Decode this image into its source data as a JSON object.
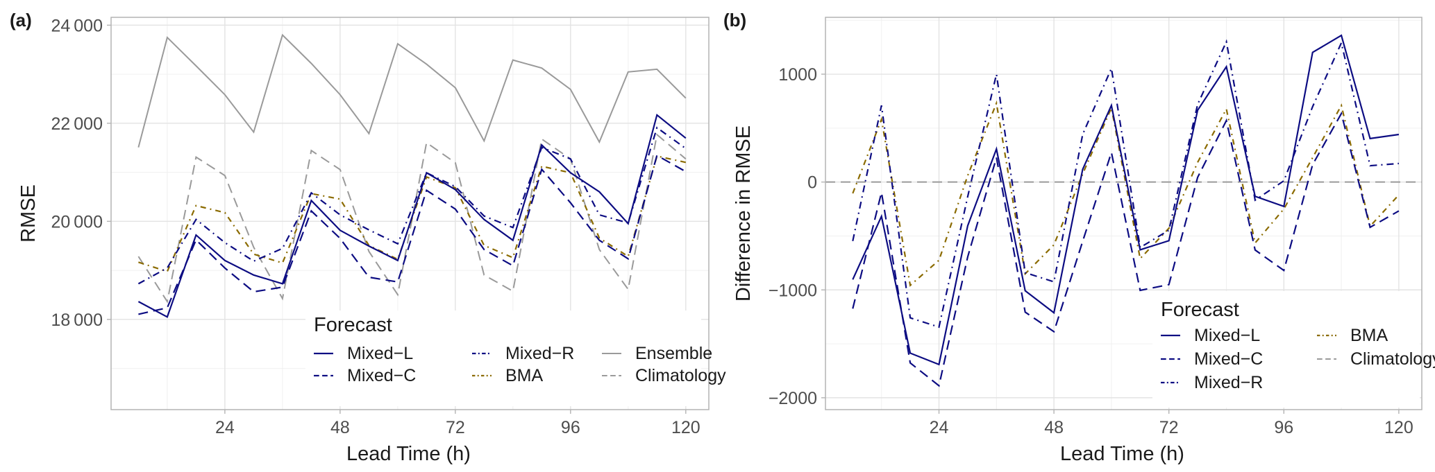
{
  "figure": {
    "panels": [
      {
        "label": "(a)"
      },
      {
        "label": "(b)"
      }
    ]
  },
  "styles": {
    "Mixed-L": {
      "color": "#0c0c82",
      "dash": "",
      "width": 2.2
    },
    "Mixed-C": {
      "color": "#0c0c82",
      "dash": "14 8",
      "width": 2.2
    },
    "Mixed-R": {
      "color": "#0c0c82",
      "dash": "10 6 2 6",
      "width": 2.2
    },
    "BMA": {
      "color": "#8b6b00",
      "dash": "8 6 2 6",
      "width": 2.2
    },
    "Ensemble": {
      "color": "#9a9a9a",
      "dash": "",
      "width": 2
    },
    "Climatology": {
      "color": "#9a9a9a",
      "dash": "14 8",
      "width": 2
    }
  },
  "chart_data": [
    {
      "type": "line",
      "panel": "(a)",
      "title": "",
      "xlabel": "Lead Time (h)",
      "ylabel": "RMSE",
      "xlim": [
        0.3,
        124.8
      ],
      "ylim": [
        16160,
        24160
      ],
      "xticks": [
        24,
        48,
        72,
        96,
        120
      ],
      "xtick_labels": [
        "24",
        "48",
        "72",
        "96",
        "120"
      ],
      "yticks": [
        18000,
        20000,
        22000,
        24000
      ],
      "ytick_labels": [
        "18 000",
        "20 000",
        "22 000",
        "24 000"
      ],
      "grid": true,
      "legend": {
        "title": "Forecast",
        "placement": "bottom-right",
        "entries": [
          "Mixed−L",
          "Mixed−C",
          "Mixed−R",
          "BMA",
          "Ensemble",
          "Climatology"
        ],
        "keys": [
          "Mixed-L",
          "Mixed-C",
          "Mixed-R",
          "BMA",
          "Ensemble",
          "Climatology"
        ]
      },
      "x": [
        6,
        12,
        18,
        24,
        30,
        36,
        42,
        48,
        54,
        60,
        66,
        72,
        78,
        84,
        90,
        96,
        102,
        108,
        114,
        120
      ],
      "series": [
        {
          "name": "Mixed-L",
          "values": [
            18364,
            18050,
            19721,
            19202,
            18905,
            18727,
            20424,
            19816,
            19495,
            19202,
            20990,
            20646,
            20037,
            19613,
            21556,
            20990,
            20603,
            19953,
            22168,
            21697
          ]
        },
        {
          "name": "Mixed-C",
          "values": [
            18105,
            18236,
            19622,
            19047,
            18563,
            18658,
            20212,
            19651,
            18859,
            18764,
            20632,
            20249,
            19425,
            19094,
            21061,
            20377,
            19613,
            19236,
            21344,
            21014
          ]
        },
        {
          "name": "Mixed-R",
          "values": [
            18727,
            19047,
            20038,
            19566,
            19188,
            19448,
            20580,
            20132,
            19825,
            19542,
            20990,
            20707,
            20107,
            19873,
            21509,
            21273,
            20132,
            19967,
            21910,
            21485
          ]
        },
        {
          "name": "BMA",
          "values": [
            19166,
            18976,
            20320,
            20179,
            19330,
            19151,
            20566,
            20452,
            19509,
            19226,
            20905,
            20683,
            19509,
            19260,
            21122,
            20990,
            19660,
            19283,
            21330,
            21202
          ]
        },
        {
          "name": "Ensemble",
          "values": [
            21508,
            23748,
            23170,
            22583,
            21819,
            23800,
            23220,
            22583,
            21790,
            23620,
            23205,
            22724,
            21640,
            23290,
            23126,
            22690,
            21617,
            23046,
            23102,
            22512
          ]
        },
        {
          "name": "Climatology",
          "values": [
            19283,
            18364,
            21310,
            20933,
            19471,
            18425,
            21443,
            21054,
            19386,
            18505,
            21603,
            21195,
            18905,
            18575,
            21678,
            21273,
            19424,
            18613,
            21768,
            21273
          ]
        }
      ]
    },
    {
      "type": "line",
      "panel": "(b)",
      "title": "",
      "xlabel": "Lead Time (h)",
      "ylabel": "Difference in RMSE",
      "xlim": [
        0.3,
        124.8
      ],
      "ylim": [
        -2110,
        1527
      ],
      "xticks": [
        24,
        48,
        72,
        96,
        120
      ],
      "xtick_labels": [
        "24",
        "48",
        "72",
        "96",
        "120"
      ],
      "yticks": [
        -2000,
        -1000,
        0,
        1000
      ],
      "ytick_labels": [
        "−2000",
        "−1000",
        "0",
        "1000"
      ],
      "grid": true,
      "legend": {
        "title": "Forecast",
        "placement": "bottom-right",
        "entries": [
          "Mixed−L",
          "Mixed−C",
          "Mixed−R",
          "BMA",
          "Climatology"
        ],
        "keys": [
          "Mixed-L",
          "Mixed-C",
          "Mixed-R",
          "BMA",
          "Climatology"
        ]
      },
      "x": [
        6,
        12,
        18,
        24,
        30,
        36,
        42,
        48,
        54,
        60,
        66,
        72,
        78,
        84,
        90,
        96,
        102,
        108,
        114,
        120
      ],
      "series": [
        {
          "name": "Mixed-L",
          "values": [
            -904,
            -318,
            -1586,
            -1692,
            -405,
            306,
            -1008,
            -1212,
            118,
            710,
            -628,
            -544,
            666,
            1069,
            -133,
            -226,
            1202,
            1359,
            403,
            441
          ]
        },
        {
          "name": "Mixed-C",
          "values": [
            -1174,
            -97,
            -1677,
            -1888,
            -694,
            226,
            -1206,
            -1387,
            -550,
            274,
            -1004,
            -951,
            43,
            570,
            -630,
            -820,
            161,
            635,
            -420,
            -268
          ]
        },
        {
          "name": "Mixed-R",
          "values": [
            -547,
            710,
            -1259,
            -1345,
            -135,
            1000,
            -840,
            -925,
            441,
            1054,
            -607,
            -447,
            720,
            1301,
            -168,
            11,
            699,
            1290,
            151,
            172
          ]
        },
        {
          "name": "BMA",
          "values": [
            -105,
            581,
            -958,
            -725,
            60,
            731,
            -851,
            -582,
            75,
            688,
            -710,
            -429,
            183,
            677,
            -565,
            -250,
            226,
            710,
            -410,
            -119
          ]
        },
        {
          "name": "Climatology",
          "values": [
            0,
            0,
            0,
            0,
            0,
            0,
            0,
            0,
            0,
            0,
            0,
            0,
            0,
            0,
            0,
            0,
            0,
            0,
            0,
            0
          ]
        }
      ]
    }
  ]
}
